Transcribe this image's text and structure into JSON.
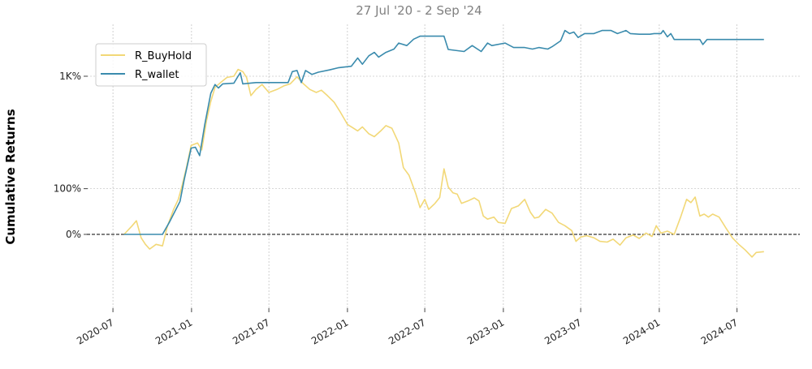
{
  "chart_data": {
    "type": "line",
    "title": "",
    "subtitle": "27 Jul '20 -  2 Sep '24",
    "ylabel": "Cumulative Returns",
    "xlabel": "",
    "y_scale": "log",
    "baseline": 0,
    "grid": true,
    "legend_position": "top-left",
    "x_ticks": [
      "2020-07",
      "2021-01",
      "2021-07",
      "2022-01",
      "2022-07",
      "2023-01",
      "2023-07",
      "2024-01",
      "2024-07"
    ],
    "y_ticks": [
      {
        "value": 0,
        "label": "0%"
      },
      {
        "value": 100,
        "label": "100%"
      },
      {
        "value": 1000,
        "label": "1K%"
      }
    ],
    "xlim": [
      "2020-05-01",
      "2024-11-25"
    ],
    "series": [
      {
        "name": "R_BuyHold",
        "color": "#f2d877",
        "points": [
          [
            "2020-07-27",
            0
          ],
          [
            "2020-08-15",
            14
          ],
          [
            "2020-08-25",
            23
          ],
          [
            "2020-09-05",
            -5
          ],
          [
            "2020-09-15",
            -14
          ],
          [
            "2020-09-25",
            -20
          ],
          [
            "2020-10-10",
            -14
          ],
          [
            "2020-10-25",
            -16
          ],
          [
            "2020-11-05",
            12
          ],
          [
            "2020-11-20",
            46
          ],
          [
            "2020-12-01",
            70
          ],
          [
            "2020-12-10",
            110
          ],
          [
            "2020-12-20",
            175
          ],
          [
            "2020-12-31",
            285
          ],
          [
            "2021-01-15",
            300
          ],
          [
            "2021-01-25",
            260
          ],
          [
            "2021-02-05",
            460
          ],
          [
            "2021-02-15",
            650
          ],
          [
            "2021-02-25",
            830
          ],
          [
            "2021-03-10",
            900
          ],
          [
            "2021-03-25",
            980
          ],
          [
            "2021-04-10",
            1000
          ],
          [
            "2021-04-20",
            1120
          ],
          [
            "2021-05-01",
            1080
          ],
          [
            "2021-05-10",
            980
          ],
          [
            "2021-05-20",
            720
          ],
          [
            "2021-06-01",
            800
          ],
          [
            "2021-06-15",
            870
          ],
          [
            "2021-07-01",
            760
          ],
          [
            "2021-07-20",
            800
          ],
          [
            "2021-08-05",
            850
          ],
          [
            "2021-08-20",
            880
          ],
          [
            "2021-09-05",
            990
          ],
          [
            "2021-09-20",
            880
          ],
          [
            "2021-10-05",
            800
          ],
          [
            "2021-10-20",
            760
          ],
          [
            "2021-11-01",
            790
          ],
          [
            "2021-11-15",
            720
          ],
          [
            "2021-12-01",
            640
          ],
          [
            "2021-12-15",
            540
          ],
          [
            "2022-01-01",
            430
          ],
          [
            "2022-01-15",
            400
          ],
          [
            "2022-01-25",
            380
          ],
          [
            "2022-02-05",
            410
          ],
          [
            "2022-02-20",
            360
          ],
          [
            "2022-03-05",
            340
          ],
          [
            "2022-03-20",
            380
          ],
          [
            "2022-04-01",
            420
          ],
          [
            "2022-04-15",
            400
          ],
          [
            "2022-05-01",
            300
          ],
          [
            "2022-05-12",
            175
          ],
          [
            "2022-05-25",
            145
          ],
          [
            "2022-06-10",
            85
          ],
          [
            "2022-06-20",
            50
          ],
          [
            "2022-07-01",
            70
          ],
          [
            "2022-07-10",
            46
          ],
          [
            "2022-07-25",
            60
          ],
          [
            "2022-08-05",
            75
          ],
          [
            "2022-08-15",
            170
          ],
          [
            "2022-08-25",
            105
          ],
          [
            "2022-09-05",
            88
          ],
          [
            "2022-09-15",
            84
          ],
          [
            "2022-09-25",
            60
          ],
          [
            "2022-10-10",
            66
          ],
          [
            "2022-10-25",
            74
          ],
          [
            "2022-11-05",
            66
          ],
          [
            "2022-11-15",
            32
          ],
          [
            "2022-11-25",
            26
          ],
          [
            "2022-12-10",
            30
          ],
          [
            "2022-12-20",
            20
          ],
          [
            "2023-01-05",
            18
          ],
          [
            "2023-01-20",
            48
          ],
          [
            "2023-02-05",
            54
          ],
          [
            "2023-02-20",
            70
          ],
          [
            "2023-03-05",
            40
          ],
          [
            "2023-03-15",
            28
          ],
          [
            "2023-03-25",
            30
          ],
          [
            "2023-04-10",
            46
          ],
          [
            "2023-04-25",
            38
          ],
          [
            "2023-05-10",
            20
          ],
          [
            "2023-05-25",
            14
          ],
          [
            "2023-06-10",
            6
          ],
          [
            "2023-06-20",
            -10
          ],
          [
            "2023-07-01",
            -4
          ],
          [
            "2023-07-15",
            -2
          ],
          [
            "2023-08-01",
            -5
          ],
          [
            "2023-08-15",
            -10
          ],
          [
            "2023-09-01",
            -11
          ],
          [
            "2023-09-15",
            -7
          ],
          [
            "2023-10-01",
            -15
          ],
          [
            "2023-10-15",
            -5
          ],
          [
            "2023-11-01",
            -1
          ],
          [
            "2023-11-15",
            -6
          ],
          [
            "2023-12-01",
            2
          ],
          [
            "2023-12-15",
            -3
          ],
          [
            "2023-12-25",
            14
          ],
          [
            "2024-01-05",
            2
          ],
          [
            "2024-01-20",
            5
          ],
          [
            "2024-02-05",
            0
          ],
          [
            "2024-02-20",
            30
          ],
          [
            "2024-03-05",
            70
          ],
          [
            "2024-03-15",
            62
          ],
          [
            "2024-03-25",
            76
          ],
          [
            "2024-04-05",
            32
          ],
          [
            "2024-04-15",
            36
          ],
          [
            "2024-04-25",
            30
          ],
          [
            "2024-05-05",
            36
          ],
          [
            "2024-05-20",
            30
          ],
          [
            "2024-06-05",
            10
          ],
          [
            "2024-06-20",
            -5
          ],
          [
            "2024-07-05",
            -14
          ],
          [
            "2024-07-20",
            -21
          ],
          [
            "2024-08-05",
            -29
          ],
          [
            "2024-08-15",
            -24
          ],
          [
            "2024-09-02",
            -23
          ]
        ]
      },
      {
        "name": "R_wallet",
        "color": "#3a8bad",
        "points": [
          [
            "2020-07-27",
            0
          ],
          [
            "2020-10-25",
            0
          ],
          [
            "2020-11-10",
            20
          ],
          [
            "2020-11-25",
            45
          ],
          [
            "2020-12-05",
            65
          ],
          [
            "2020-12-15",
            130
          ],
          [
            "2020-12-31",
            270
          ],
          [
            "2021-01-10",
            275
          ],
          [
            "2021-01-20",
            230
          ],
          [
            "2021-02-01",
            430
          ],
          [
            "2021-02-15",
            750
          ],
          [
            "2021-02-25",
            870
          ],
          [
            "2021-03-05",
            820
          ],
          [
            "2021-03-15",
            880
          ],
          [
            "2021-04-10",
            890
          ],
          [
            "2021-04-20",
            1000
          ],
          [
            "2021-04-25",
            1060
          ],
          [
            "2021-05-01",
            880
          ],
          [
            "2021-06-01",
            900
          ],
          [
            "2021-08-15",
            900
          ],
          [
            "2021-08-25",
            1080
          ],
          [
            "2021-09-05",
            1100
          ],
          [
            "2021-09-15",
            900
          ],
          [
            "2021-09-25",
            1100
          ],
          [
            "2021-10-10",
            1030
          ],
          [
            "2021-10-25",
            1070
          ],
          [
            "2021-11-20",
            1110
          ],
          [
            "2021-12-10",
            1150
          ],
          [
            "2022-01-10",
            1180
          ],
          [
            "2022-01-25",
            1350
          ],
          [
            "2022-02-05",
            1220
          ],
          [
            "2022-02-20",
            1400
          ],
          [
            "2022-03-05",
            1480
          ],
          [
            "2022-03-15",
            1370
          ],
          [
            "2022-04-01",
            1480
          ],
          [
            "2022-04-20",
            1560
          ],
          [
            "2022-05-01",
            1720
          ],
          [
            "2022-05-20",
            1650
          ],
          [
            "2022-06-05",
            1830
          ],
          [
            "2022-06-20",
            1920
          ],
          [
            "2022-07-05",
            1920
          ],
          [
            "2022-08-15",
            1920
          ],
          [
            "2022-08-25",
            1550
          ],
          [
            "2022-10-01",
            1500
          ],
          [
            "2022-10-20",
            1650
          ],
          [
            "2022-11-10",
            1500
          ],
          [
            "2022-11-25",
            1720
          ],
          [
            "2022-12-05",
            1650
          ],
          [
            "2023-01-05",
            1720
          ],
          [
            "2023-01-25",
            1600
          ],
          [
            "2023-02-20",
            1600
          ],
          [
            "2023-03-10",
            1560
          ],
          [
            "2023-03-25",
            1600
          ],
          [
            "2023-04-15",
            1560
          ],
          [
            "2023-04-25",
            1620
          ],
          [
            "2023-05-15",
            1780
          ],
          [
            "2023-05-25",
            2100
          ],
          [
            "2023-06-05",
            2000
          ],
          [
            "2023-06-15",
            2050
          ],
          [
            "2023-06-25",
            1880
          ],
          [
            "2023-07-10",
            2000
          ],
          [
            "2023-08-01",
            2000
          ],
          [
            "2023-08-20",
            2100
          ],
          [
            "2023-09-10",
            2100
          ],
          [
            "2023-09-25",
            2000
          ],
          [
            "2023-10-15",
            2100
          ],
          [
            "2023-10-25",
            2000
          ],
          [
            "2023-11-15",
            1980
          ],
          [
            "2023-12-10",
            1980
          ],
          [
            "2023-12-20",
            2000
          ],
          [
            "2024-01-05",
            2000
          ],
          [
            "2024-01-10",
            2100
          ],
          [
            "2024-01-20",
            1900
          ],
          [
            "2024-01-28",
            2000
          ],
          [
            "2024-02-05",
            1820
          ],
          [
            "2024-03-15",
            1820
          ],
          [
            "2024-04-05",
            1820
          ],
          [
            "2024-04-12",
            1680
          ],
          [
            "2024-04-22",
            1820
          ],
          [
            "2024-06-01",
            1820
          ],
          [
            "2024-09-02",
            1820
          ]
        ]
      }
    ]
  }
}
